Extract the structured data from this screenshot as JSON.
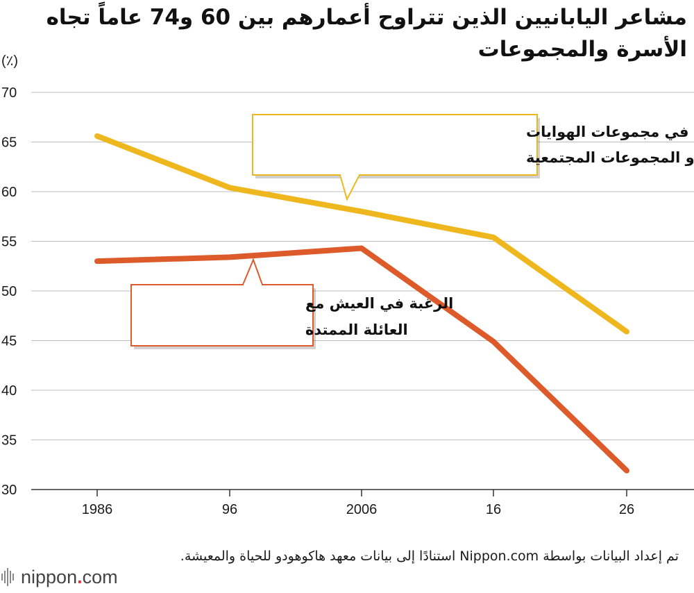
{
  "chart_data": {
    "type": "line",
    "title": "مشاعر اليابانيين الذين تتراوح أعمارهم بين 60 و74 عاماً تجاه الأسرة والمجموعات",
    "ylabel": "(٪)",
    "xlabel": "",
    "categories": [
      "1986",
      "96",
      "2006",
      "16",
      "26"
    ],
    "ylim": [
      30,
      70
    ],
    "yticks": [
      30,
      35,
      40,
      45,
      50,
      55,
      60,
      65,
      70
    ],
    "grid": true,
    "legend": "callouts",
    "series": [
      {
        "name": "المشاركة في مجموعات الهوايات أو المجموعات المجتمعية",
        "label_lines": [
          "المشاركة في مجموعات الهوايات",
          "أو المجموعات المجتمعية"
        ],
        "color": "#efb71e",
        "values": [
          65.6,
          60.4,
          58.0,
          55.4,
          45.9
        ]
      },
      {
        "name": "الرغبة في العيش مع العائلة الممتدة",
        "label_lines": [
          "الرغبة في العيش مع",
          "العائلة الممتدة"
        ],
        "color": "#dd5a2a",
        "values": [
          53.0,
          53.4,
          54.3,
          44.9,
          31.9
        ]
      }
    ]
  },
  "source": "تم إعداد البيانات بواسطة Nippon.com استنادًا إلى بيانات معهد هاكوهودو للحياة والمعيشة.",
  "logo": {
    "name": "nippon",
    "dot": ".",
    "suffix": "com"
  }
}
